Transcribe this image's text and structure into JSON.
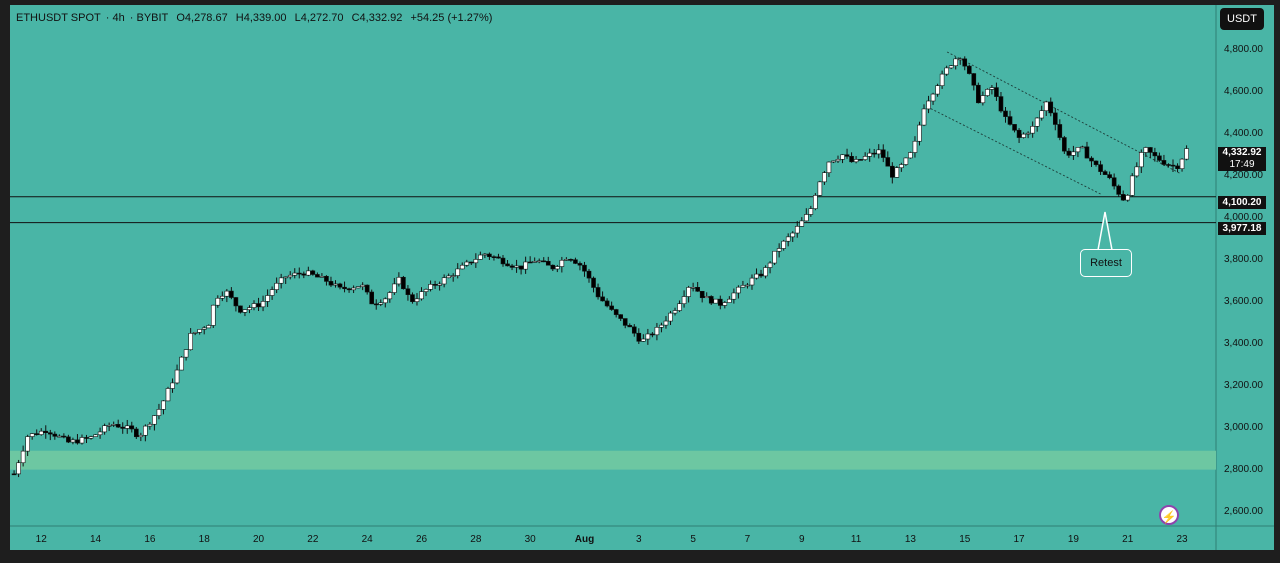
{
  "header": {
    "symbol": "ETHUSDT SPOT",
    "timeframe": "4h",
    "exchange": "BYBIT",
    "open": "O4,278.67",
    "high": "H4,339.00",
    "low": "L4,272.70",
    "close": "C4,332.92",
    "change": "+54.25 (+1.27%)"
  },
  "currency_button": "USDT",
  "price_tag": {
    "price": "4,332.92",
    "countdown": "17:49"
  },
  "level_tags": [
    "4,100.20",
    "3,977.18"
  ],
  "retest_label": "Retest",
  "colors": {
    "background": "#49b5a6",
    "frame": "#1e1e1e",
    "candle_up": "#ffffff",
    "candle_down": "#000000",
    "zone": "#6dc7a2"
  },
  "chart_data": {
    "type": "candlestick",
    "y_ticks": [
      "4,800.00",
      "4,600.00",
      "4,400.00",
      "4,200.00",
      "4,000.00",
      "3,800.00",
      "3,600.00",
      "3,400.00",
      "3,200.00",
      "3,000.00",
      "2,800.00",
      "2,600.00"
    ],
    "y_tick_values": [
      4800,
      4600,
      4400,
      4200,
      4000,
      3800,
      3600,
      3400,
      3200,
      3000,
      2800,
      2600
    ],
    "ylim": [
      2560,
      4990
    ],
    "x_ticks": [
      "12",
      "14",
      "16",
      "18",
      "20",
      "22",
      "24",
      "26",
      "28",
      "30",
      "Aug",
      "3",
      "5",
      "7",
      "9",
      "11",
      "13",
      "15",
      "17",
      "19",
      "21",
      "23"
    ],
    "x_tick_days": [
      12,
      14,
      16,
      18,
      20,
      22,
      24,
      26,
      28,
      30,
      32,
      34,
      36,
      38,
      40,
      42,
      44,
      46,
      48,
      50,
      52,
      54
    ],
    "xlim_days": [
      10.85,
      55.25
    ],
    "x_unit": "days from July 1 (Aug 1 = 32)",
    "horizontal_levels": [
      4100.2,
      3977.18
    ],
    "support_zone": [
      2800,
      2890
    ],
    "channel_upper": [
      [
        45.35,
        4790
      ],
      [
        53.95,
        4210
      ]
    ],
    "channel_lower": [
      [
        44.75,
        4520
      ],
      [
        51.05,
        4110
      ]
    ],
    "anchors": [
      [
        11.0,
        2780
      ],
      [
        11.5,
        2960
      ],
      [
        12.2,
        2990
      ],
      [
        13.0,
        2930
      ],
      [
        13.8,
        2950
      ],
      [
        14.6,
        3020
      ],
      [
        15.3,
        2990
      ],
      [
        15.6,
        2960
      ],
      [
        16.4,
        3100
      ],
      [
        17.0,
        3270
      ],
      [
        17.5,
        3440
      ],
      [
        18.2,
        3500
      ],
      [
        18.4,
        3620
      ],
      [
        18.8,
        3650
      ],
      [
        19.3,
        3560
      ],
      [
        20.1,
        3590
      ],
      [
        20.5,
        3660
      ],
      [
        21.0,
        3720
      ],
      [
        21.7,
        3740
      ],
      [
        22.5,
        3700
      ],
      [
        23.0,
        3660
      ],
      [
        23.8,
        3680
      ],
      [
        24.2,
        3590
      ],
      [
        24.7,
        3620
      ],
      [
        25.2,
        3710
      ],
      [
        25.6,
        3600
      ],
      [
        26.2,
        3660
      ],
      [
        27.0,
        3720
      ],
      [
        27.8,
        3790
      ],
      [
        28.3,
        3830
      ],
      [
        28.9,
        3800
      ],
      [
        29.6,
        3760
      ],
      [
        30.2,
        3800
      ],
      [
        30.8,
        3760
      ],
      [
        31.4,
        3820
      ],
      [
        31.9,
        3770
      ],
      [
        32.5,
        3630
      ],
      [
        33.1,
        3540
      ],
      [
        33.7,
        3470
      ],
      [
        34.1,
        3410
      ],
      [
        34.7,
        3470
      ],
      [
        35.4,
        3580
      ],
      [
        35.9,
        3690
      ],
      [
        36.4,
        3620
      ],
      [
        37.0,
        3590
      ],
      [
        37.5,
        3640
      ],
      [
        38.1,
        3700
      ],
      [
        38.6,
        3740
      ],
      [
        39.1,
        3850
      ],
      [
        39.7,
        3930
      ],
      [
        40.3,
        4030
      ],
      [
        40.6,
        4160
      ],
      [
        41.0,
        4270
      ],
      [
        41.5,
        4300
      ],
      [
        41.9,
        4260
      ],
      [
        42.5,
        4300
      ],
      [
        42.9,
        4320
      ],
      [
        43.3,
        4200
      ],
      [
        43.7,
        4250
      ],
      [
        44.1,
        4320
      ],
      [
        44.5,
        4530
      ],
      [
        45.0,
        4640
      ],
      [
        45.4,
        4720
      ],
      [
        45.8,
        4780
      ],
      [
        46.1,
        4700
      ],
      [
        46.5,
        4560
      ],
      [
        47.0,
        4620
      ],
      [
        47.5,
        4470
      ],
      [
        48.0,
        4380
      ],
      [
        48.5,
        4430
      ],
      [
        49.0,
        4550
      ],
      [
        49.3,
        4470
      ],
      [
        49.7,
        4300
      ],
      [
        50.3,
        4330
      ],
      [
        50.8,
        4250
      ],
      [
        51.3,
        4190
      ],
      [
        51.6,
        4130
      ],
      [
        51.9,
        4080
      ],
      [
        52.2,
        4200
      ],
      [
        52.6,
        4330
      ],
      [
        53.0,
        4290
      ],
      [
        53.4,
        4260
      ],
      [
        53.8,
        4240
      ],
      [
        54.2,
        4333
      ]
    ]
  }
}
